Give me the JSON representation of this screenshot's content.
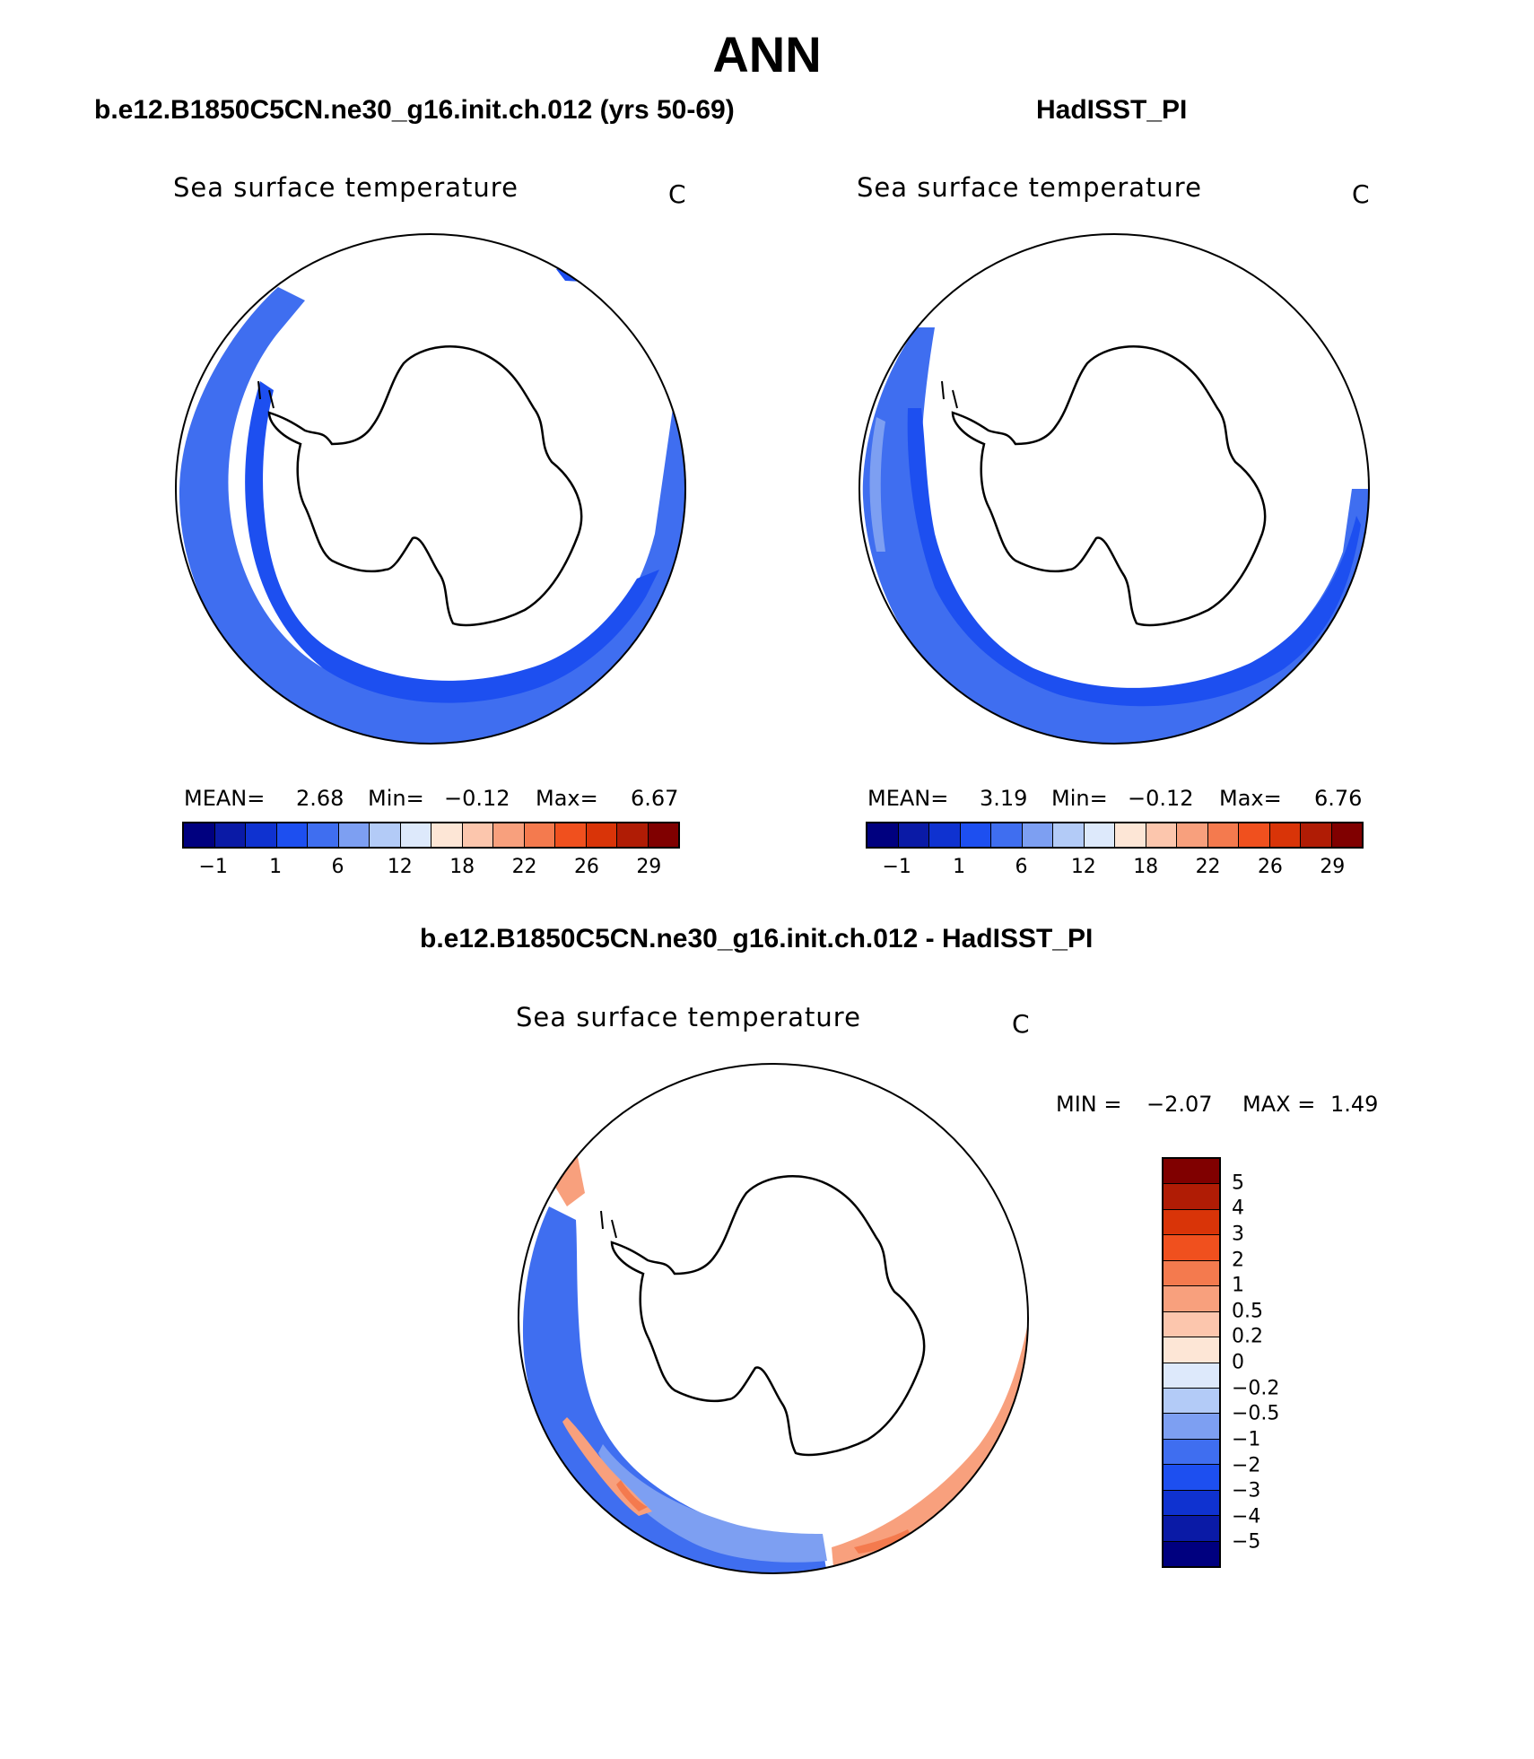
{
  "figure": {
    "title": "ANN"
  },
  "panels": {
    "model": {
      "case_title": "b.e12.B1850C5CN.ne30_g16.init.ch.012 (yrs 50-69)",
      "variable": "Sea surface temperature",
      "units": "C",
      "mean_label": "MEAN=",
      "mean": "2.68",
      "min_label": "Min=",
      "min": "−0.12",
      "max_label": "Max=",
      "max": "6.67"
    },
    "obs": {
      "case_title": "HadISST_PI",
      "variable": "Sea surface temperature",
      "units": "C",
      "mean_label": "MEAN=",
      "mean": "3.19",
      "min_label": "Min=",
      "min": "−0.12",
      "max_label": "Max=",
      "max": "6.76"
    },
    "diff": {
      "case_title": "b.e12.B1850C5CN.ne30_g16.init.ch.012 - HadISST_PI",
      "variable": "Sea surface temperature",
      "units": "C",
      "min_label": "MIN =",
      "min": "−2.07",
      "max_label": "MAX =",
      "max": "1.49"
    }
  },
  "colorbars": {
    "abs_tick_labels": [
      "−1",
      "1",
      "6",
      "12",
      "18",
      "22",
      "26",
      "29"
    ],
    "abs_colors": [
      "#00007f",
      "#0a1aa6",
      "#0f32d0",
      "#1d4ff0",
      "#3f6ef0",
      "#7d9ff2",
      "#b3cbf7",
      "#dde9fb",
      "#fde6d6",
      "#fcc6ad",
      "#f8a07d",
      "#f47a4e",
      "#f0501e",
      "#d93408",
      "#b01c05",
      "#800000"
    ],
    "diff_tick_labels": [
      "5",
      "4",
      "3",
      "2",
      "1",
      "0.5",
      "0.2",
      "0",
      "−0.2",
      "−0.5",
      "−1",
      "−2",
      "−3",
      "−4",
      "−5"
    ],
    "diff_colors": [
      "#800000",
      "#b01c05",
      "#d93408",
      "#f0501e",
      "#f47a4e",
      "#f8a07d",
      "#fcc6ad",
      "#fde6d6",
      "#dde9fb",
      "#b3cbf7",
      "#7d9ff2",
      "#3f6ef0",
      "#1d4ff0",
      "#0f32d0",
      "#0a1aa6",
      "#00007f"
    ]
  },
  "colors": {
    "ocean_cold": "#1d4ff0",
    "ocean_mid": "#3f6ef0",
    "ocean_light": "#7d9ff2",
    "warm_light": "#f8a07d",
    "warm": "#f47a4e"
  }
}
